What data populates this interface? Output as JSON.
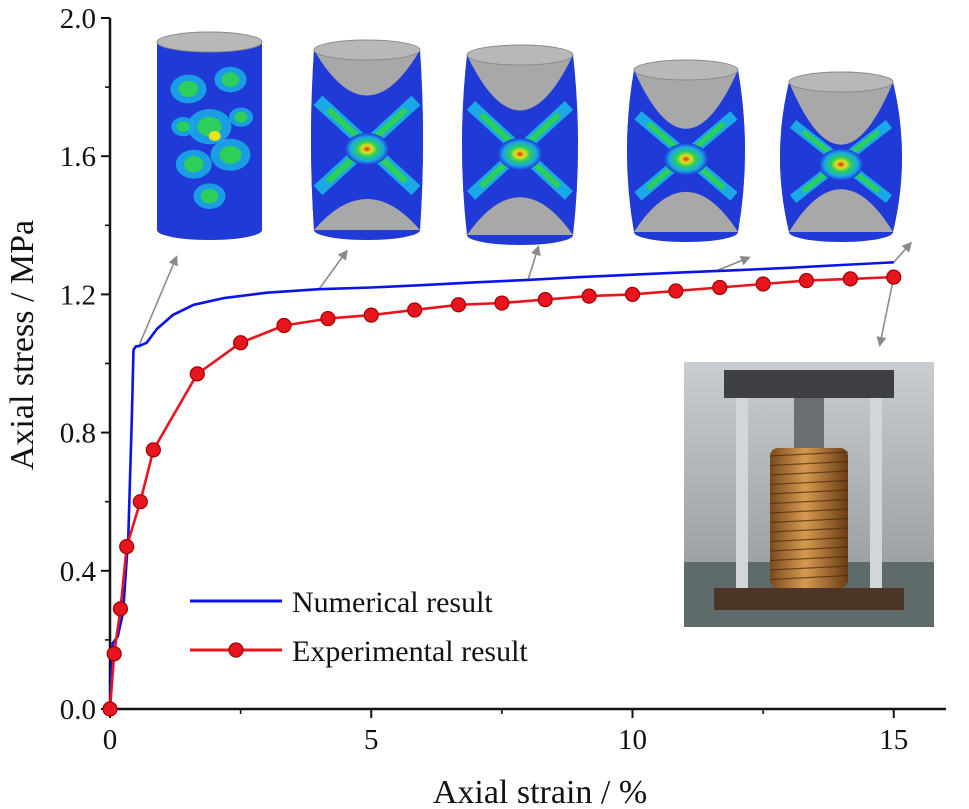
{
  "chart_data": {
    "type": "line",
    "title": "",
    "xlabel": "Axial strain / %",
    "ylabel": "Axial stress / MPa",
    "xlim": [
      0,
      16
    ],
    "ylim": [
      0,
      2.0
    ],
    "xticks": [
      0,
      5,
      10,
      15
    ],
    "xtick_labels": [
      "0",
      "5",
      "10",
      "15"
    ],
    "yticks": [
      0.0,
      0.4,
      0.8,
      1.2,
      1.6,
      2.0
    ],
    "ytick_labels": [
      "0.0",
      "0.4",
      "0.8",
      "1.2",
      "1.6",
      "2.0"
    ],
    "grid": false,
    "legend_position": "bottom-left",
    "series": [
      {
        "name": "Numerical result",
        "color": "#0a14e6",
        "marker": "none",
        "x": [
          0,
          0.05,
          0.15,
          0.25,
          0.35,
          0.42,
          0.45,
          0.5,
          0.55,
          0.7,
          0.9,
          1.2,
          1.6,
          2.2,
          3.0,
          4.0,
          5.0,
          6.0,
          7.0,
          8.0,
          9.0,
          10.0,
          11.0,
          12.0,
          13.0,
          14.0,
          15.0
        ],
        "y": [
          0,
          0.19,
          0.21,
          0.28,
          0.5,
          0.85,
          1.04,
          1.05,
          1.05,
          1.06,
          1.1,
          1.14,
          1.17,
          1.19,
          1.205,
          1.215,
          1.22,
          1.227,
          1.235,
          1.242,
          1.25,
          1.257,
          1.264,
          1.27,
          1.277,
          1.285,
          1.293
        ]
      },
      {
        "name": "Experimental result",
        "color": "#e8141e",
        "marker": "circle",
        "x": [
          0,
          0.08,
          0.2,
          0.32,
          0.58,
          0.83,
          1.67,
          2.5,
          3.33,
          4.17,
          5.0,
          5.83,
          6.67,
          7.5,
          8.33,
          9.17,
          10.0,
          10.83,
          11.67,
          12.5,
          13.33,
          14.17,
          15.0
        ],
        "y": [
          0,
          0.16,
          0.29,
          0.47,
          0.6,
          0.75,
          0.97,
          1.06,
          1.11,
          1.13,
          1.14,
          1.155,
          1.17,
          1.175,
          1.185,
          1.195,
          1.2,
          1.21,
          1.22,
          1.23,
          1.24,
          1.245,
          1.25
        ]
      }
    ],
    "annotations": [
      {
        "label": "simulation snapshot",
        "point": [
          0.55,
          1.05
        ]
      },
      {
        "label": "simulation snapshot",
        "point": [
          4.0,
          1.215
        ]
      },
      {
        "label": "simulation snapshot",
        "point": [
          8.0,
          1.242
        ]
      },
      {
        "label": "simulation snapshot",
        "point": [
          11.6,
          1.268
        ]
      },
      {
        "label": "simulation snapshot",
        "point": [
          15.0,
          1.293
        ]
      },
      {
        "label": "test apparatus photo",
        "point": [
          15.0,
          1.25
        ]
      }
    ]
  },
  "colors": {
    "axis": "#111111",
    "arrow": "#8a8a8a",
    "contour_gray": "#9a9a9a",
    "contour_blue": "#1f3ad6",
    "contour_cyan": "#1aa8e6",
    "contour_green": "#2bcf5a",
    "contour_yellow": "#e8e21a",
    "contour_red": "#e0261c"
  }
}
